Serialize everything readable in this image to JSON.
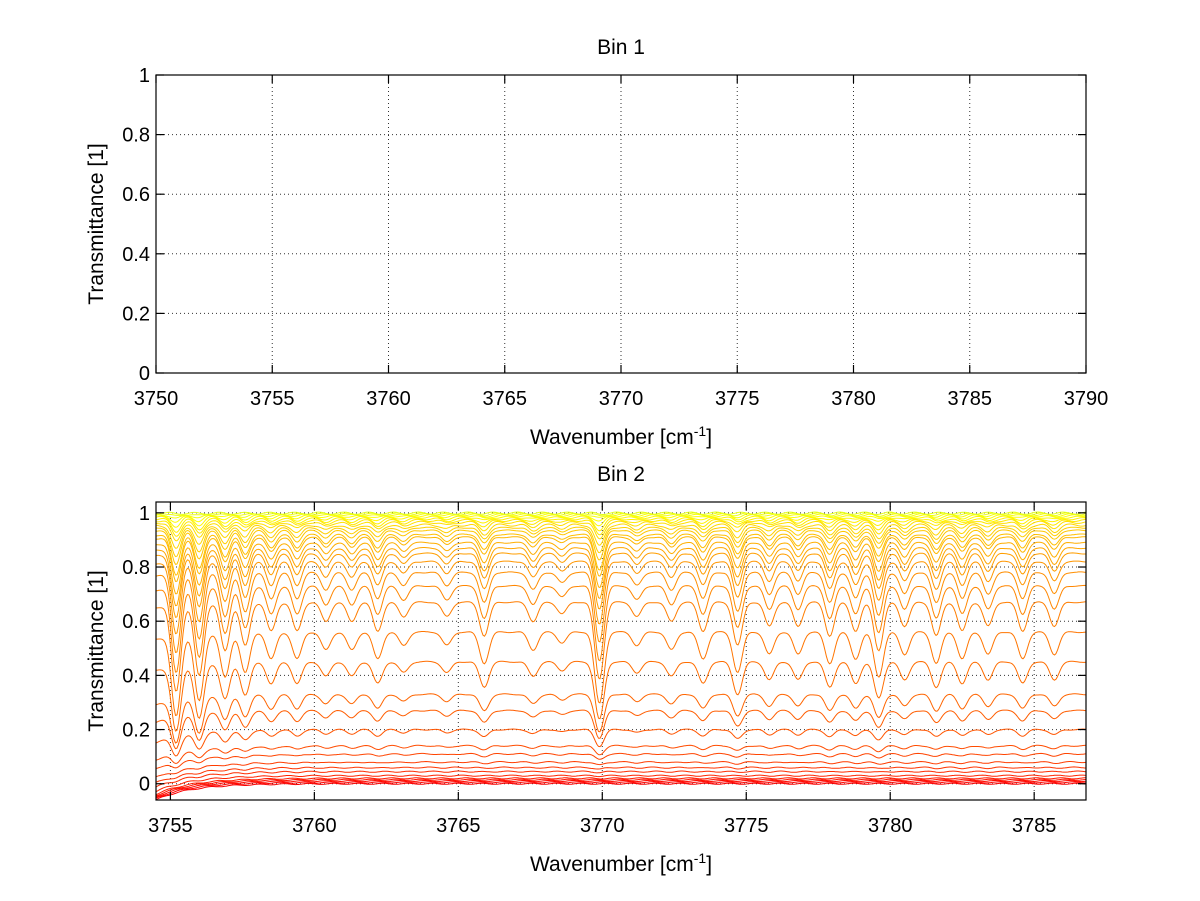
{
  "chart_data": [
    {
      "type": "line",
      "title": "Bin 1",
      "xlabel": "Wavenumber [cm",
      "xlabel_sup": "-1",
      "xlabel_tail": "]",
      "ylabel": "Transmittance [1]",
      "xlim": [
        3750,
        3790
      ],
      "ylim": [
        0,
        1
      ],
      "xticks": [
        3750,
        3755,
        3760,
        3765,
        3770,
        3775,
        3780,
        3785,
        3790
      ],
      "xtick_labels": [
        "3750",
        "3755",
        "3760",
        "3765",
        "3770",
        "3775",
        "3780",
        "3785",
        "3790"
      ],
      "yticks": [
        0,
        0.2,
        0.4,
        0.6,
        0.8,
        1
      ],
      "ytick_labels": [
        "0",
        "0.2",
        "0.4",
        "0.6",
        "0.8",
        "1"
      ],
      "grid": true,
      "series": []
    },
    {
      "type": "line",
      "title": "Bin 2",
      "xlabel": "Wavenumber [cm",
      "xlabel_sup": "-1",
      "xlabel_tail": "]",
      "ylabel": "Transmittance [1]",
      "xlim": [
        3754.5,
        3786.8
      ],
      "ylim": [
        -0.06,
        1.04
      ],
      "xticks": [
        3755,
        3760,
        3765,
        3770,
        3775,
        3780,
        3785
      ],
      "xtick_labels": [
        "3755",
        "3760",
        "3765",
        "3770",
        "3775",
        "3780",
        "3785"
      ],
      "yticks": [
        0,
        0.2,
        0.4,
        0.6,
        0.8,
        1
      ],
      "ytick_labels": [
        "0",
        "0.2",
        "0.4",
        "0.6",
        "0.8",
        "1"
      ],
      "grid": true,
      "colormap": "jet",
      "line_count": 36,
      "baseline_levels": [
        0.0,
        0.005,
        0.01,
        0.015,
        0.02,
        0.03,
        0.045,
        0.06,
        0.08,
        0.11,
        0.14,
        0.2,
        0.27,
        0.33,
        0.45,
        0.56,
        0.67,
        0.73,
        0.78,
        0.82,
        0.85,
        0.87,
        0.89,
        0.91,
        0.92,
        0.935,
        0.945,
        0.955,
        0.965,
        0.972,
        0.978,
        0.984,
        0.989,
        0.993,
        0.996,
        0.999
      ],
      "absorption_lines": [
        {
          "x": 3755.2,
          "depth": 0.9
        },
        {
          "x": 3756.0,
          "depth": 0.75
        },
        {
          "x": 3756.9,
          "depth": 0.5
        },
        {
          "x": 3757.6,
          "depth": 0.45
        },
        {
          "x": 3758.5,
          "depth": 0.3
        },
        {
          "x": 3759.4,
          "depth": 0.3
        },
        {
          "x": 3760.4,
          "depth": 0.2
        },
        {
          "x": 3761.3,
          "depth": 0.2
        },
        {
          "x": 3762.2,
          "depth": 0.3
        },
        {
          "x": 3763.1,
          "depth": 0.15
        },
        {
          "x": 3764.6,
          "depth": 0.15
        },
        {
          "x": 3765.9,
          "depth": 0.35
        },
        {
          "x": 3767.6,
          "depth": 0.2
        },
        {
          "x": 3768.6,
          "depth": 0.12
        },
        {
          "x": 3769.9,
          "depth": 0.8
        },
        {
          "x": 3771.2,
          "depth": 0.15
        },
        {
          "x": 3772.4,
          "depth": 0.2
        },
        {
          "x": 3773.5,
          "depth": 0.3
        },
        {
          "x": 3774.7,
          "depth": 0.45
        },
        {
          "x": 3775.8,
          "depth": 0.25
        },
        {
          "x": 3776.8,
          "depth": 0.25
        },
        {
          "x": 3777.9,
          "depth": 0.35
        },
        {
          "x": 3778.8,
          "depth": 0.3
        },
        {
          "x": 3779.6,
          "depth": 0.5
        },
        {
          "x": 3780.5,
          "depth": 0.25
        },
        {
          "x": 3781.6,
          "depth": 0.35
        },
        {
          "x": 3782.5,
          "depth": 0.3
        },
        {
          "x": 3783.4,
          "depth": 0.25
        },
        {
          "x": 3784.6,
          "depth": 0.3
        },
        {
          "x": 3785.7,
          "depth": 0.25
        }
      ]
    }
  ]
}
